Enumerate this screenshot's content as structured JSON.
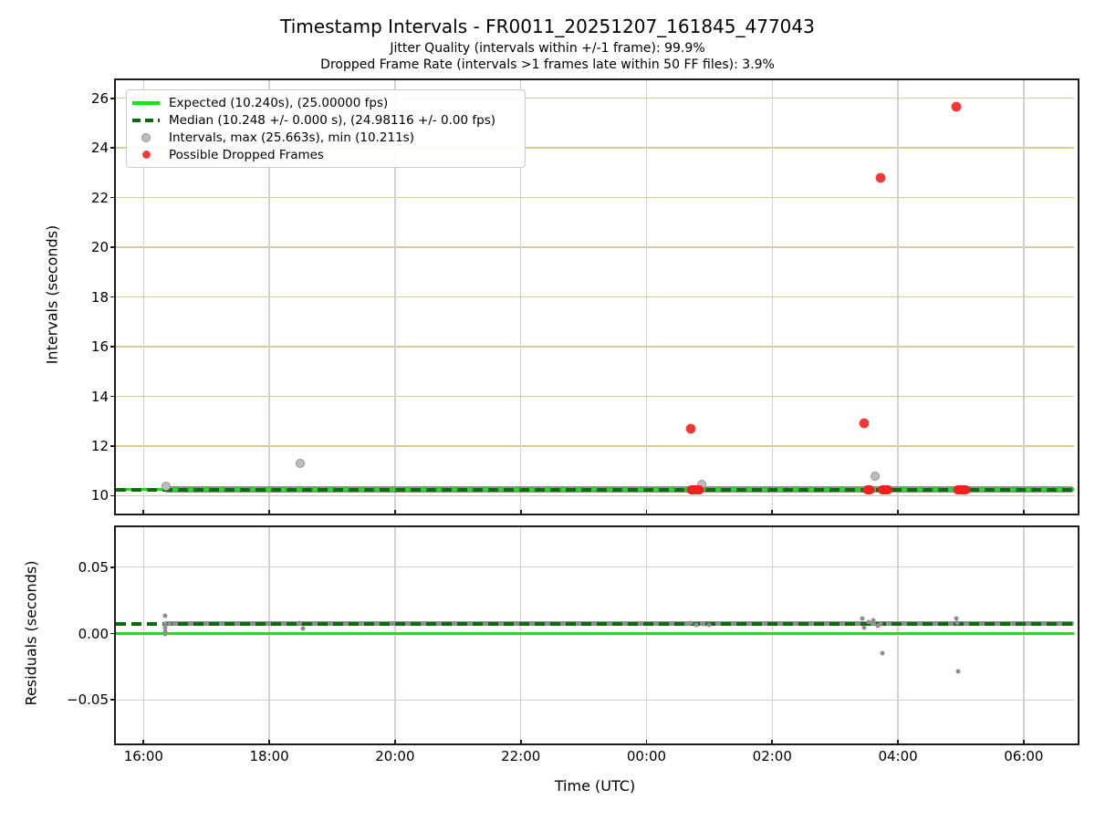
{
  "title": "Timestamp Intervals - FR0011_20251207_161845_477043",
  "subtitles": {
    "jitter_quality": "Jitter Quality (intervals within +/-1 frame): 99.9%",
    "dropped_frame_rate": "Dropped Frame Rate (intervals >1 frames late within 50 FF files): 3.9%"
  },
  "legend": [
    {
      "marker": "line-solid",
      "label": "Expected (10.240s), (25.00000 fps)"
    },
    {
      "marker": "line-dashed",
      "label": "Median (10.248 +/- 0.000 s), (24.98116 +/- 0.00 fps)"
    },
    {
      "marker": "dot-gray",
      "label": "Intervals, max (25.663s), min (10.211s)"
    },
    {
      "marker": "dot-red",
      "label": "Possible Dropped Frames"
    }
  ],
  "colors": {
    "expected": "#00ee00",
    "median": "#0a6b0a",
    "interval_band": "#8d8d8d",
    "gray_point_fill": "#bdbdbd",
    "gray_point_edge": "#969696",
    "red_point_core": "#ee3838",
    "red_point_rim": "#f59b9b",
    "red_cluster": "#ee2020",
    "grid_tan": "#d8cc96",
    "grid_gray": "#d2d2d2",
    "spine": "#1c1c1c",
    "residual_point": "#8f8f8f"
  },
  "x_axis": {
    "label": "Time (UTC)",
    "xlim_hours": [
      15.56,
      30.8
    ],
    "ticks": [
      {
        "hour": 16,
        "label": "16:00"
      },
      {
        "hour": 18,
        "label": "18:00"
      },
      {
        "hour": 20,
        "label": "20:00"
      },
      {
        "hour": 22,
        "label": "22:00"
      },
      {
        "hour": 24,
        "label": "00:00"
      },
      {
        "hour": 26,
        "label": "02:00"
      },
      {
        "hour": 28,
        "label": "04:00"
      },
      {
        "hour": 30,
        "label": "06:00"
      }
    ]
  },
  "chart_data": [
    {
      "type": "scatter",
      "name": "intervals",
      "ylabel": "Intervals (seconds)",
      "ylim": [
        9.43,
        26.72
      ],
      "yticks": [
        {
          "v": 10,
          "label": "10"
        },
        {
          "v": 12,
          "label": "12"
        },
        {
          "v": 14,
          "label": "14"
        },
        {
          "v": 16,
          "label": "16"
        },
        {
          "v": 18,
          "label": "18"
        },
        {
          "v": 20,
          "label": "20"
        },
        {
          "v": 22,
          "label": "22"
        },
        {
          "v": 24,
          "label": "24"
        },
        {
          "v": 26,
          "label": "26"
        }
      ],
      "h_grid_color": "tan",
      "expected_line_value": 10.24,
      "median_line_value": 10.248,
      "stats": {
        "expected_s": 10.24,
        "expected_fps": 25.0,
        "median_s": 10.248,
        "median_fps": 24.98116,
        "max_s": 25.663,
        "min_s": 10.211
      },
      "interval_band": {
        "t_start": 16.33,
        "t_end": 30.8,
        "value": 10.248,
        "thickness": 7
      },
      "gray_points": [
        {
          "t": 16.36,
          "v": 10.37
        },
        {
          "t": 18.49,
          "v": 11.3
        },
        {
          "t": 24.88,
          "v": 10.46
        },
        {
          "t": 27.64,
          "v": 10.79
        }
      ],
      "red_points": [
        {
          "t": 24.7,
          "v": 12.7
        },
        {
          "t": 27.46,
          "v": 12.9
        },
        {
          "t": 27.72,
          "v": 22.8
        },
        {
          "t": 28.93,
          "v": 25.663
        }
      ],
      "red_clusters": [
        {
          "t": 24.78,
          "v": 10.22,
          "w": 19
        },
        {
          "t": 27.54,
          "v": 10.22,
          "w": 13
        },
        {
          "t": 27.8,
          "v": 10.22,
          "w": 16
        },
        {
          "t": 29.01,
          "v": 10.22,
          "w": 19
        }
      ]
    },
    {
      "type": "scatter",
      "name": "residuals",
      "ylabel": "Residuals (seconds)",
      "ylim": [
        -0.08,
        0.08
      ],
      "yticks": [
        {
          "v": 0.05,
          "label": "0.05"
        },
        {
          "v": 0.0,
          "label": "0.00"
        },
        {
          "v": -0.05,
          "label": "−0.05"
        }
      ],
      "h_grid_color": "gray",
      "expected_line_value": 0.0,
      "median_line_value": 0.0073,
      "interval_band": {
        "t_start": 16.33,
        "t_end": 30.8,
        "value": 0.0073,
        "thickness": 5
      },
      "gray_points": [
        {
          "t": 16.34,
          "v": 0.0132
        },
        {
          "t": 16.34,
          "v": 0.0075
        },
        {
          "t": 16.35,
          "v": 0.0048
        },
        {
          "t": 16.34,
          "v": 0.002
        },
        {
          "t": 16.34,
          "v": 0.0
        },
        {
          "t": 16.42,
          "v": 0.007
        },
        {
          "t": 18.48,
          "v": 0.0082
        },
        {
          "t": 18.53,
          "v": 0.0041
        },
        {
          "t": 24.7,
          "v": 0.0082
        },
        {
          "t": 24.79,
          "v": 0.0062
        },
        {
          "t": 24.89,
          "v": 0.0075
        },
        {
          "t": 25.0,
          "v": 0.0068
        },
        {
          "t": 27.43,
          "v": 0.0116
        },
        {
          "t": 27.46,
          "v": 0.0048
        },
        {
          "t": 27.54,
          "v": 0.0089
        },
        {
          "t": 27.61,
          "v": 0.0103
        },
        {
          "t": 27.68,
          "v": 0.0055
        },
        {
          "t": 27.73,
          "v": 0.0075
        },
        {
          "t": 27.75,
          "v": -0.0151
        },
        {
          "t": 28.93,
          "v": 0.0116
        },
        {
          "t": 28.94,
          "v": 0.0082
        },
        {
          "t": 28.95,
          "v": -0.0288
        }
      ],
      "red_points": [],
      "red_clusters": []
    }
  ]
}
